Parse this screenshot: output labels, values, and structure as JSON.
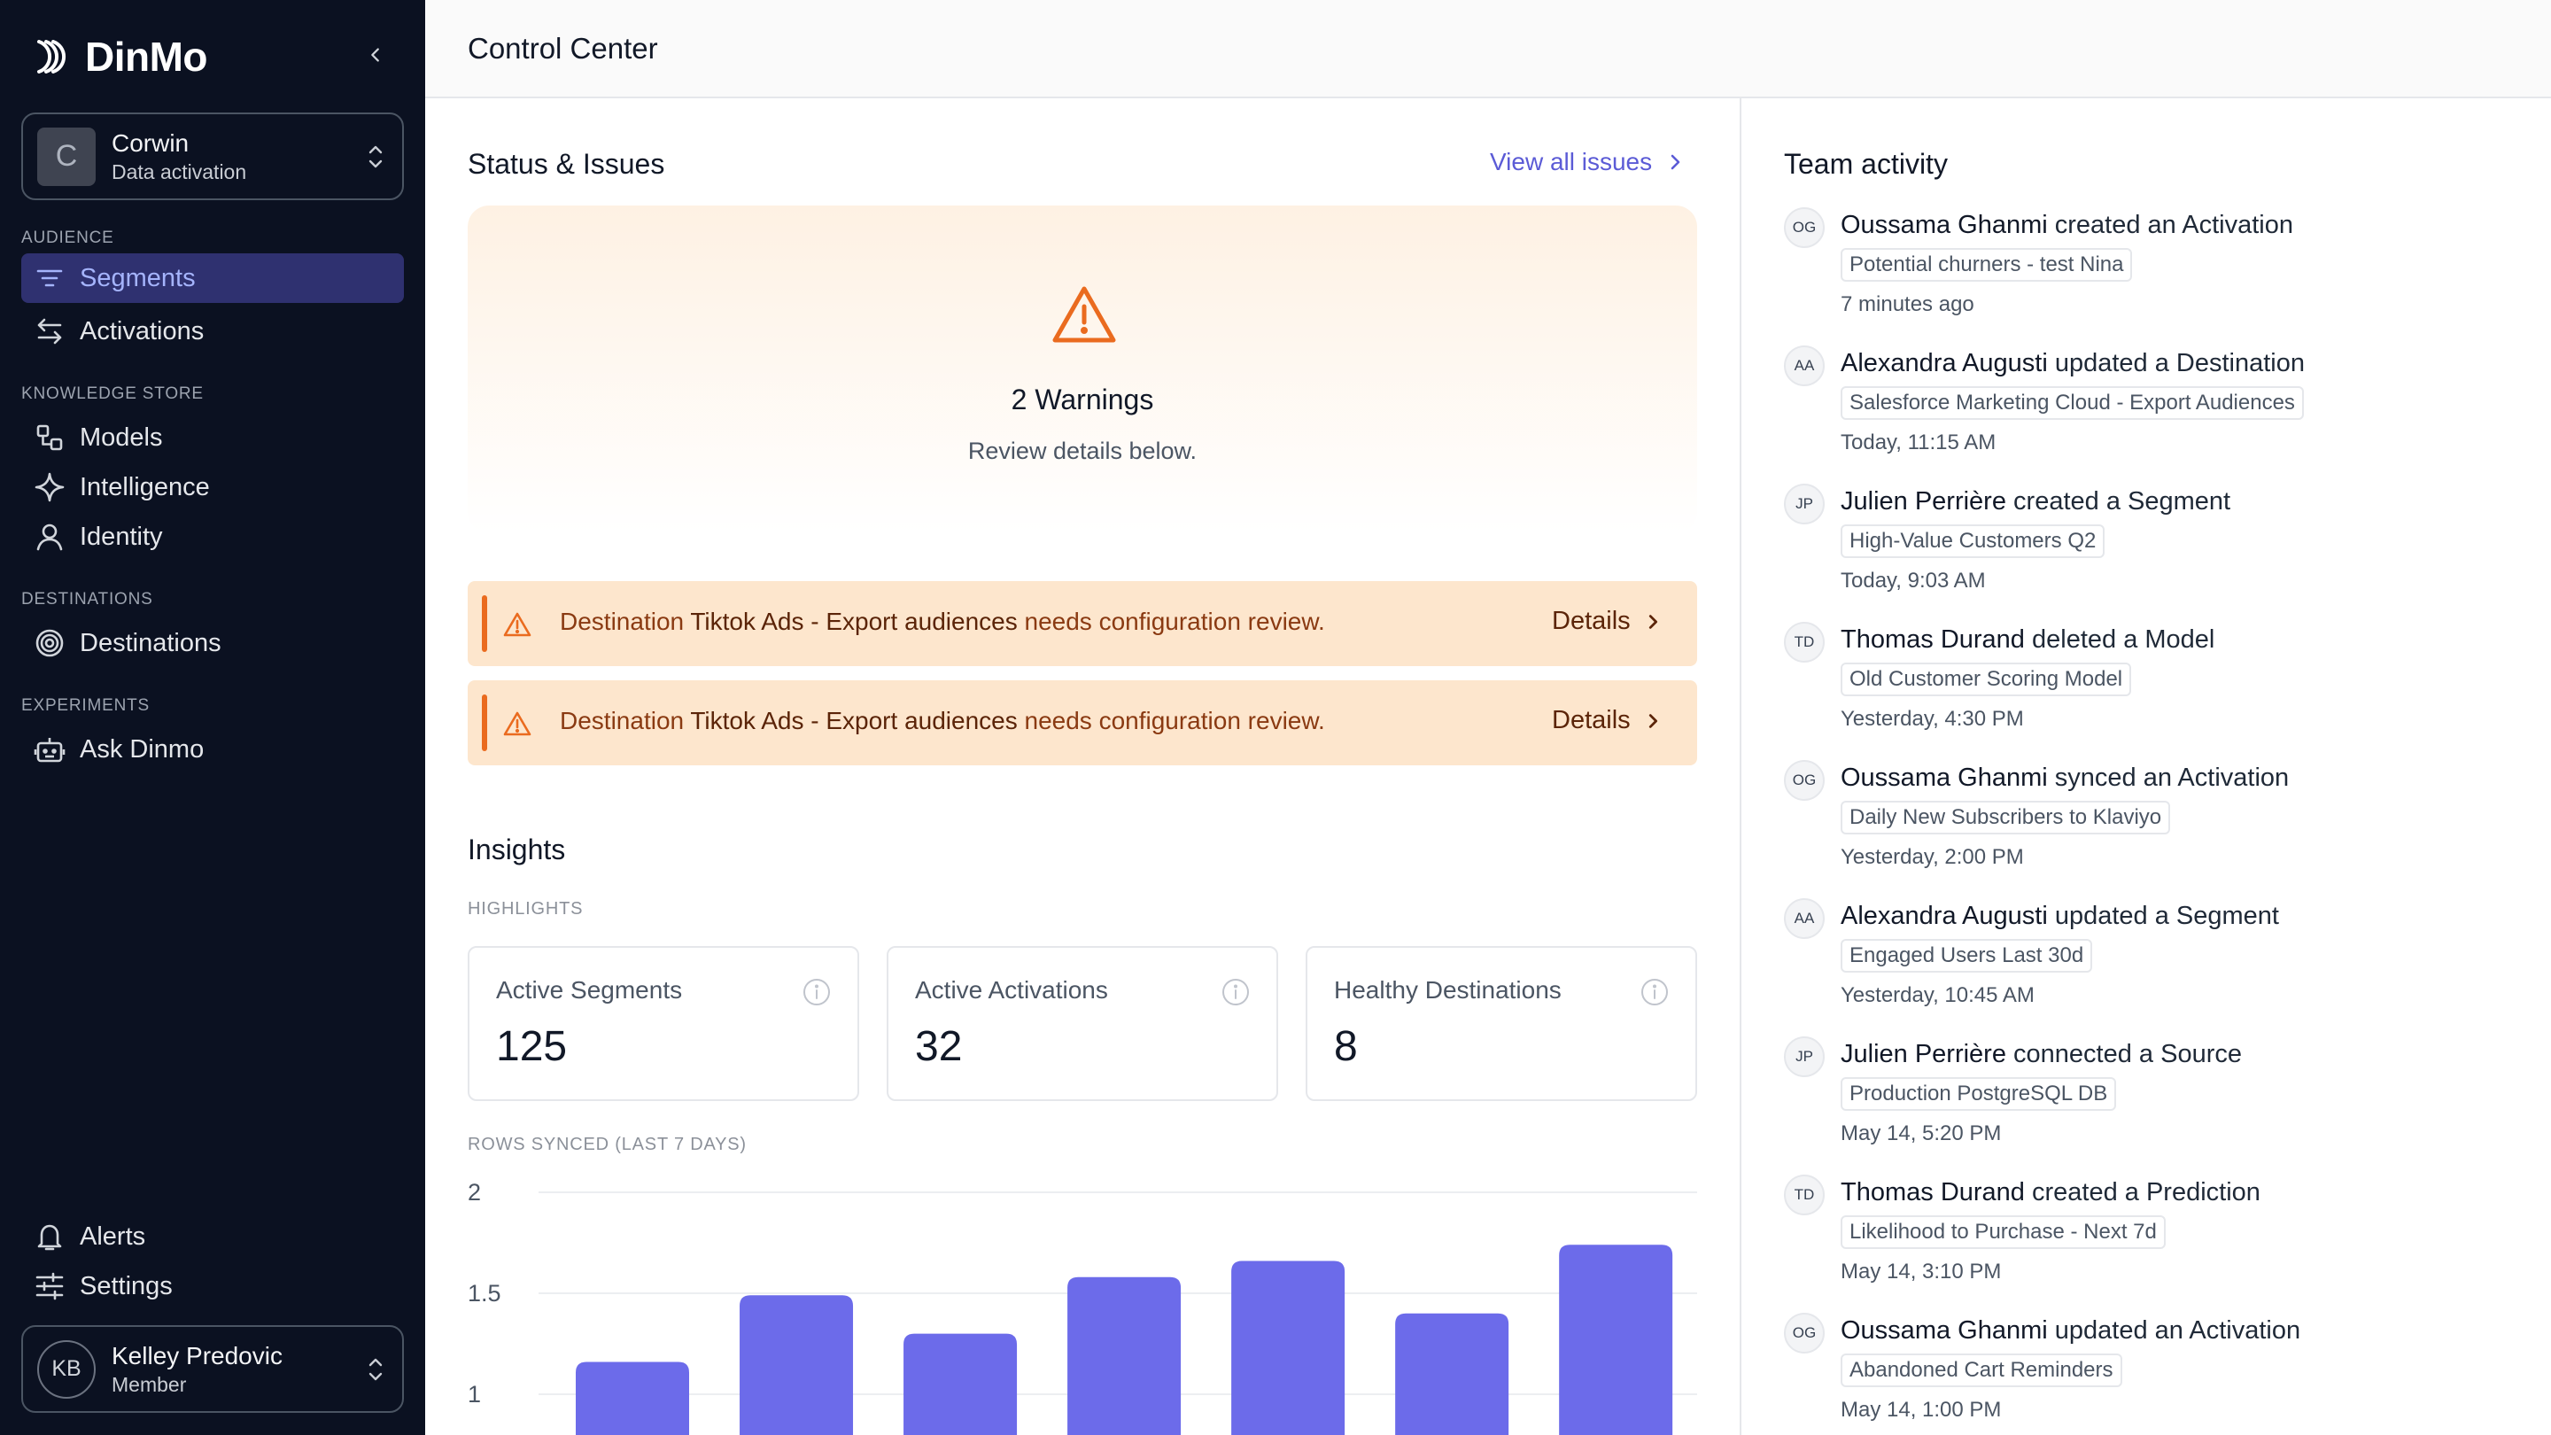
{
  "brand": {
    "name": "DinMo"
  },
  "workspace": {
    "initial": "C",
    "name": "Corwin",
    "subtitle": "Data activation"
  },
  "sidebar": {
    "sections": {
      "audience": "AUDIENCE",
      "knowledge": "KNOWLEDGE STORE",
      "destinations": "DESTINATIONS",
      "experiments": "EXPERIMENTS"
    },
    "items": {
      "segments": "Segments",
      "activations": "Activations",
      "models": "Models",
      "intelligence": "Intelligence",
      "identity": "Identity",
      "destinations": "Destinations",
      "ask_dinmo": "Ask Dinmo",
      "alerts": "Alerts",
      "settings": "Settings"
    },
    "active": "segments"
  },
  "user": {
    "initials": "KB",
    "name": "Kelley Predovic",
    "role": "Member"
  },
  "header": {
    "title": "Control Center"
  },
  "status": {
    "title": "Status & Issues",
    "view_all": "View all issues",
    "warnings_title": "2 Warnings",
    "warnings_sub": "Review details below.",
    "alerts": [
      {
        "prefix": "Destination ",
        "name": "Tiktok Ads - Export audiences",
        "suffix": " needs configuration review.",
        "action": "Details"
      },
      {
        "prefix": "Destination ",
        "name": "Tiktok Ads - Export audiences",
        "suffix": " needs configuration review.",
        "action": "Details"
      }
    ]
  },
  "insights": {
    "title": "Insights",
    "highlights_label": "HIGHLIGHTS",
    "kpis": [
      {
        "label": "Active Segments",
        "value": "125"
      },
      {
        "label": "Active Activations",
        "value": "32"
      },
      {
        "label": "Healthy Destinations",
        "value": "8"
      }
    ],
    "rows_label": "ROWS SYNCED (LAST 7 DAYS)"
  },
  "chart_data": {
    "type": "bar",
    "title": "ROWS SYNCED (LAST 7 DAYS)",
    "yticks": [
      "2",
      "1.5",
      "1"
    ],
    "ylim": [
      1,
      2
    ],
    "values": [
      1.16,
      1.49,
      1.3,
      1.58,
      1.66,
      1.4,
      1.74
    ],
    "color": "#6c6bea",
    "grid": true
  },
  "activity": {
    "title": "Team activity",
    "items": [
      {
        "initials": "OG",
        "actor": "Oussama Ghanmi",
        "action": " created an Activation",
        "tag": "Potential churners - test Nina",
        "time": "7 minutes ago"
      },
      {
        "initials": "AA",
        "actor": "Alexandra Augusti",
        "action": " updated a Destination",
        "tag": "Salesforce Marketing Cloud - Export Audiences",
        "time": "Today, 11:15 AM"
      },
      {
        "initials": "JP",
        "actor": "Julien Perrière",
        "action": " created a Segment",
        "tag": "High-Value Customers Q2",
        "time": "Today, 9:03 AM"
      },
      {
        "initials": "TD",
        "actor": "Thomas Durand",
        "action": " deleted a Model",
        "tag": "Old Customer Scoring Model",
        "time": "Yesterday, 4:30 PM"
      },
      {
        "initials": "OG",
        "actor": "Oussama Ghanmi",
        "action": " synced an Activation",
        "tag": "Daily New Subscribers to Klaviyo",
        "time": "Yesterday, 2:00 PM"
      },
      {
        "initials": "AA",
        "actor": "Alexandra Augusti",
        "action": " updated a Segment",
        "tag": "Engaged Users Last 30d",
        "time": "Yesterday, 10:45 AM"
      },
      {
        "initials": "JP",
        "actor": "Julien Perrière",
        "action": " connected a Source",
        "tag": "Production PostgreSQL DB",
        "time": "May 14, 5:20 PM"
      },
      {
        "initials": "TD",
        "actor": "Thomas Durand",
        "action": " created a Prediction",
        "tag": "Likelihood to Purchase - Next 7d",
        "time": "May 14, 3:10 PM"
      },
      {
        "initials": "OG",
        "actor": "Oussama Ghanmi",
        "action": " updated an Activation",
        "tag": "Abandoned Cart Reminders",
        "time": "May 14, 1:00 PM"
      }
    ]
  }
}
